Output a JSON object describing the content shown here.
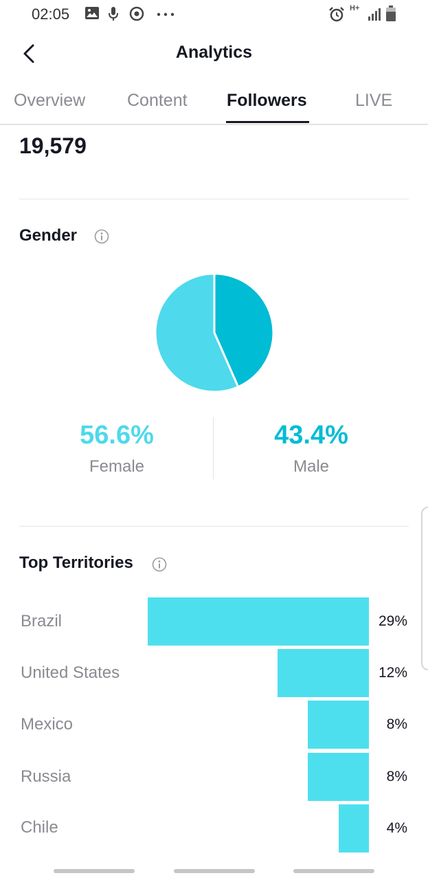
{
  "status_bar": {
    "time": "02:05",
    "network": "H+",
    "icons": [
      "image-icon",
      "mic-icon",
      "sync-icon",
      "more-dots-icon",
      "alarm-icon",
      "signal-icon",
      "battery-icon"
    ]
  },
  "header": {
    "title": "Analytics",
    "back_icon": "chevron-left-icon"
  },
  "tabs": [
    {
      "label": "Overview",
      "active": false
    },
    {
      "label": "Content",
      "active": false
    },
    {
      "label": "Followers",
      "active": true
    },
    {
      "label": "LIVE",
      "active": false
    }
  ],
  "followers": {
    "total": "19,579"
  },
  "gender": {
    "title": "Gender",
    "female": {
      "percent": "56.6%",
      "label": "Female",
      "value": 56.6,
      "color": "#4ed9ec"
    },
    "male": {
      "percent": "43.4%",
      "label": "Male",
      "value": 43.4,
      "color": "#00bcd4"
    }
  },
  "territories": {
    "title": "Top Territories",
    "bar_color": "#4edfee",
    "items": [
      {
        "country": "Brazil",
        "percent": "29%",
        "value": 29
      },
      {
        "country": "United States",
        "percent": "12%",
        "value": 12
      },
      {
        "country": "Mexico",
        "percent": "8%",
        "value": 8
      },
      {
        "country": "Russia",
        "percent": "8%",
        "value": 8
      },
      {
        "country": "Chile",
        "percent": "4%",
        "value": 4
      }
    ]
  },
  "chart_data": [
    {
      "type": "pie",
      "title": "Gender",
      "categories": [
        "Female",
        "Male"
      ],
      "values": [
        56.6,
        43.4
      ]
    },
    {
      "type": "bar",
      "title": "Top Territories",
      "categories": [
        "Brazil",
        "United States",
        "Mexico",
        "Russia",
        "Chile"
      ],
      "values": [
        29,
        12,
        8,
        8,
        4
      ]
    }
  ]
}
